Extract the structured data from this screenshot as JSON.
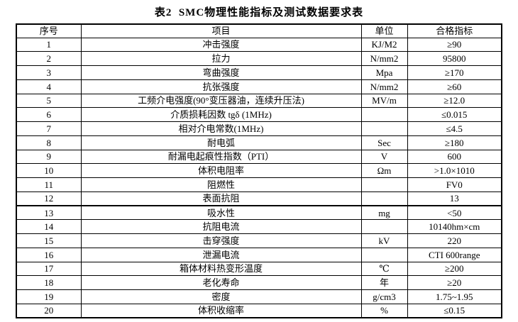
{
  "title": "表2  SMC物理性能指标及测试数据要求表",
  "table": {
    "headers": [
      "序号",
      "项目",
      "单位",
      "合格指标"
    ],
    "rows": [
      {
        "no": "1",
        "item": "冲击强度",
        "unit": "KJ/M2",
        "value": "≥90"
      },
      {
        "no": "2",
        "item": "拉力",
        "unit": "N/mm2",
        "value": "95800"
      },
      {
        "no": "3",
        "item": "弯曲强度",
        "unit": "Mpa",
        "value": "≥170"
      },
      {
        "no": "4",
        "item": "抗张强度",
        "unit": "N/mm2",
        "value": "≥60"
      },
      {
        "no": "5",
        "item": "工频介电强度(90°变压器油，连续升压法)",
        "unit": "MV/m",
        "value": "≥12.0"
      },
      {
        "no": "6",
        "item": "介质损耗因数 tgδ (1MHz)",
        "unit": "",
        "value": "≤0.015"
      },
      {
        "no": "7",
        "item": "相对介电常数(1MHz)",
        "unit": "",
        "value": "≤4.5"
      },
      {
        "no": "8",
        "item": "耐电弧",
        "unit": "Sec",
        "value": "≥180"
      },
      {
        "no": "9",
        "item": "耐漏电起痕性指数（PTI）",
        "unit": "V",
        "value": "600"
      },
      {
        "no": "10",
        "item": "体积电阻率",
        "unit": "Ωm",
        "value": ">1.0×1010"
      },
      {
        "no": "11",
        "item": "阻燃性",
        "unit": "",
        "value": "FV0"
      },
      {
        "no": "12",
        "item": "表面抗阻",
        "unit": "",
        "value": "13"
      },
      {
        "no": "13",
        "item": "吸水性",
        "unit": "mg",
        "value": "<50"
      },
      {
        "no": "14",
        "item": "抗阻电流",
        "unit": "",
        "value": "10140hm×cm"
      },
      {
        "no": "15",
        "item": "击穿强度",
        "unit": "kV",
        "value": "220"
      },
      {
        "no": "16",
        "item": "泄漏电流",
        "unit": "",
        "value": "CTI 600range"
      },
      {
        "no": "17",
        "item": "箱体材料热变形温度",
        "unit": "℃",
        "value": "≥200"
      },
      {
        "no": "18",
        "item": "老化寿命",
        "unit": "年",
        "value": "≥20"
      },
      {
        "no": "19",
        "item": "密度",
        "unit": "g/cm3",
        "value": "1.75~1.95"
      },
      {
        "no": "20",
        "item": "体积收缩率",
        "unit": "%",
        "value": "≤0.15"
      }
    ]
  }
}
